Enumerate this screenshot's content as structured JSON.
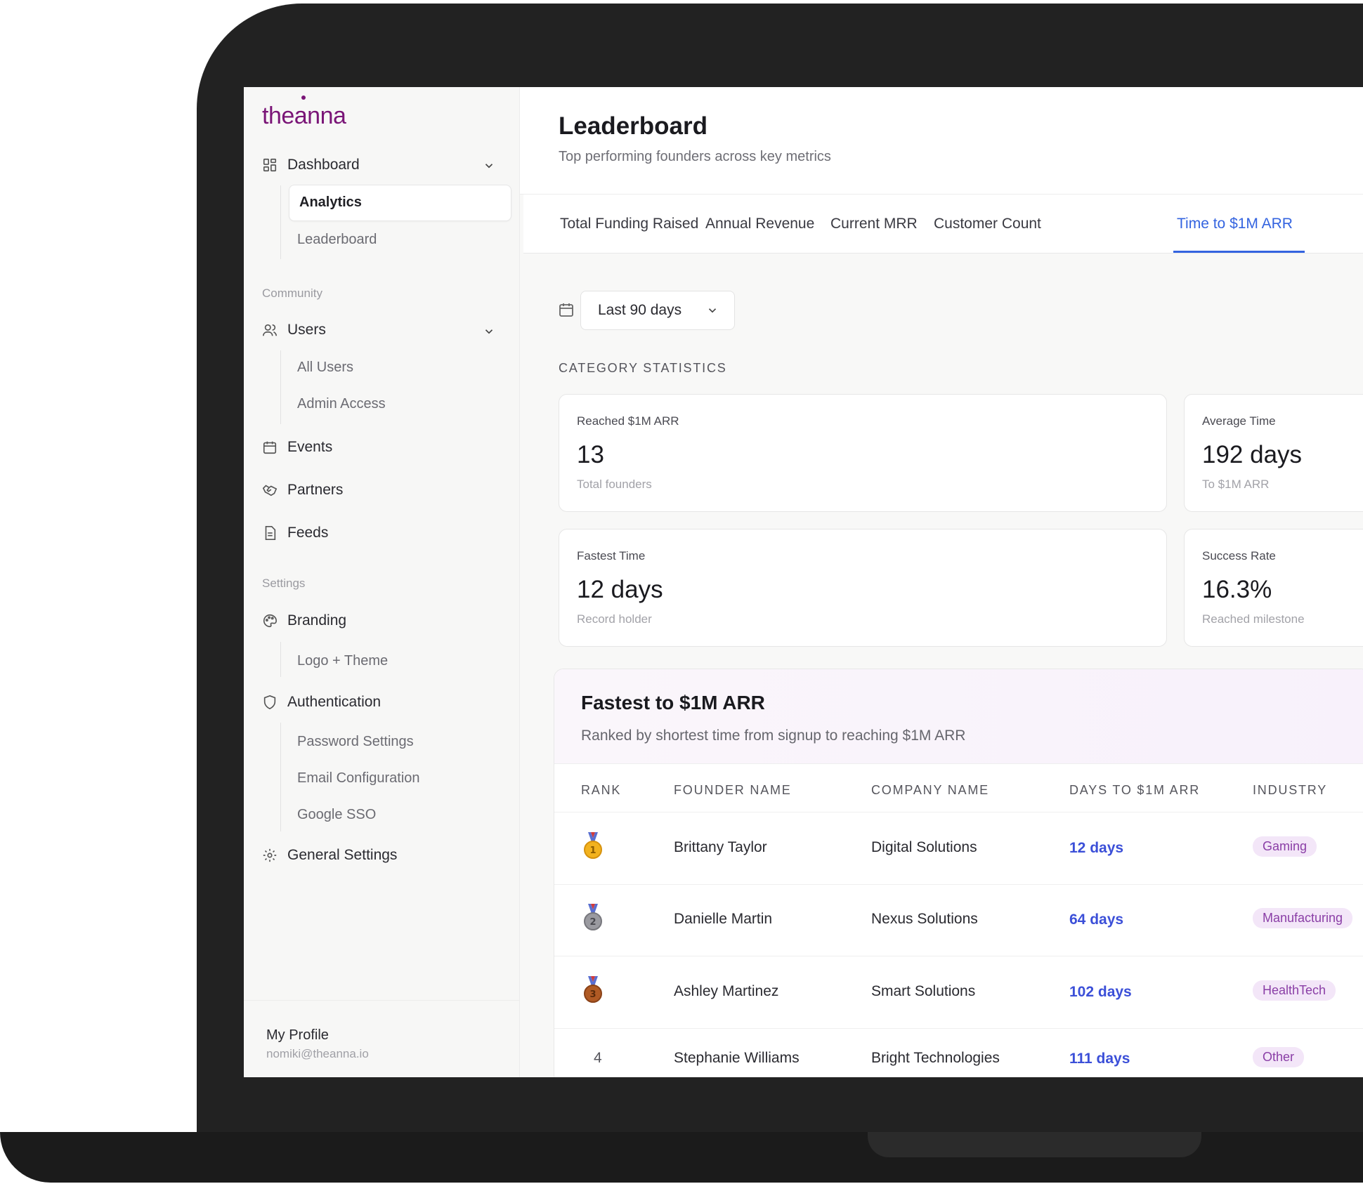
{
  "app": {
    "logo_text": "theanna"
  },
  "sidebar": {
    "dashboard_label": "Dashboard",
    "dashboard_items": [
      "Analytics",
      "Leaderboard"
    ],
    "community_label": "Community",
    "users_label": "Users",
    "users_items": [
      "All Users",
      "Admin Access"
    ],
    "events_label": "Events",
    "partners_label": "Partners",
    "feeds_label": "Feeds",
    "settings_label": "Settings",
    "branding_label": "Branding",
    "branding_items": [
      "Logo + Theme"
    ],
    "auth_label": "Authentication",
    "auth_items": [
      "Password Settings",
      "Email Configuration",
      "Google SSO"
    ],
    "general_label": "General Settings",
    "profile": {
      "name": "My Profile",
      "email": "nomiki@theanna.io"
    }
  },
  "header": {
    "title": "Leaderboard",
    "subtitle": "Top performing founders across key metrics"
  },
  "tabs": [
    "Total Funding Raised",
    "Annual Revenue",
    "Current MRR",
    "Customer Count",
    "Time to $1M ARR"
  ],
  "active_tab": "Time to $1M ARR",
  "filter": {
    "date_range": "Last 90 days"
  },
  "category_label": "CATEGORY STATISTICS",
  "stats": [
    {
      "label": "Reached $1M ARR",
      "value": "13",
      "sub": "Total founders"
    },
    {
      "label": "Average Time",
      "value": "192 days",
      "sub": "To $1M ARR"
    },
    {
      "label": "Fastest Time",
      "value": "12 days",
      "sub": "Record holder"
    },
    {
      "label": "Success Rate",
      "value": "16.3%",
      "sub": "Reached milestone"
    }
  ],
  "ranking": {
    "title": "Fastest to $1M ARR",
    "subtitle": "Ranked by shortest time from signup to reaching $1M ARR",
    "columns": [
      "RANK",
      "FOUNDER NAME",
      "COMPANY NAME",
      "DAYS TO $1M ARR",
      "INDUSTRY"
    ],
    "rows": [
      {
        "rank": "1",
        "founder": "Brittany Taylor",
        "company": "Digital Solutions",
        "days": "12 days",
        "industry": "Gaming"
      },
      {
        "rank": "2",
        "founder": "Danielle Martin",
        "company": "Nexus Solutions",
        "days": "64 days",
        "industry": "Manufacturing"
      },
      {
        "rank": "3",
        "founder": "Ashley Martinez",
        "company": "Smart Solutions",
        "days": "102 days",
        "industry": "HealthTech"
      },
      {
        "rank": "4",
        "founder": "Stephanie Williams",
        "company": "Bright Technologies",
        "days": "111 days",
        "industry": "Other"
      }
    ]
  },
  "colors": {
    "brand": "#7a1577",
    "accent": "#3464e0",
    "days_text": "#3b4fd8",
    "pill_bg": "#f3e6f8",
    "pill_text": "#8a3ea6",
    "medal_gold": "#f2b21f",
    "medal_silver": "#9a9aa0",
    "medal_bronze": "#b05a24"
  },
  "icons": [
    "grid-icon",
    "users-icon",
    "calendar-icon",
    "handshake-icon",
    "document-icon",
    "palette-icon",
    "shield-icon",
    "gear-icon",
    "chevron-down-icon",
    "medal-icon"
  ]
}
